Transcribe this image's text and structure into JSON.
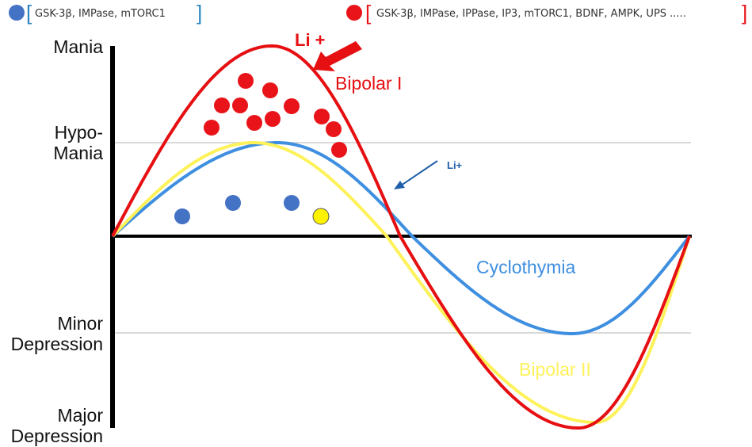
{
  "legend": {
    "blue_text": "GSK-3β, IMPase, mTORC1",
    "red_text": "GSK-3β, IMPase, IPPase, IP3, mTORC1, BDNF, AMPK, UPS ....."
  },
  "y_levels": {
    "mania": "Mania",
    "hypomania_1": "Hypo-",
    "hypomania_2": "Mania",
    "minor_1": "Minor",
    "minor_2": "Depression",
    "major_1": "Major",
    "major_2": "Depression"
  },
  "curves": {
    "bipolar_1": "Bipolar I",
    "bipolar_2": "Bipolar II",
    "cyclothymia": "Cyclothymia"
  },
  "annotations": {
    "li_large": "Li +",
    "li_small": "Li+"
  },
  "colors": {
    "bipolar_1": "#e60f12",
    "bipolar_2": "#fef25a",
    "cyclothymia": "#3f8fe0",
    "blue_dot": "#4472c4",
    "red_dot": "#e8141a",
    "yellow_dot": "#fff200",
    "gridline": "#d9d9d9",
    "axis": "#000000"
  }
}
